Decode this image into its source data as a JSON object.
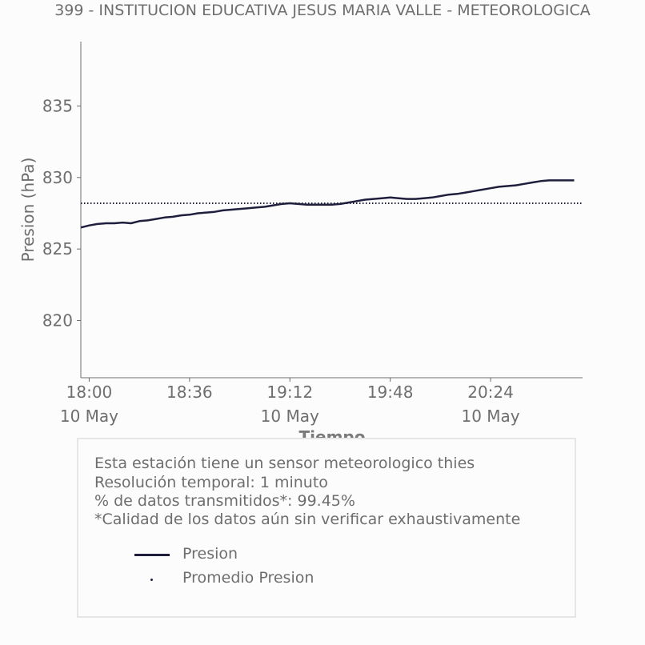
{
  "title": "399 - INSTITUCION EDUCATIVA JESUS MARIA VALLE - METEOROLOGICA",
  "chart_data": {
    "type": "line",
    "ylabel": "Presion (hPa)",
    "xlabel": "Tiempo",
    "ylim": [
      816,
      839.5
    ],
    "xlim": [
      "2024-05-10 17:57",
      "2024-05-10 20:57"
    ],
    "yticks": [
      820,
      825,
      830,
      835
    ],
    "xticks": [
      {
        "time": "18:00",
        "date": "10 May"
      },
      {
        "time": "18:36",
        "date": ""
      },
      {
        "time": "19:12",
        "date": "10 May"
      },
      {
        "time": "19:48",
        "date": ""
      },
      {
        "time": "20:24",
        "date": "10 May"
      }
    ],
    "grid": false,
    "series": [
      {
        "name": "Presion",
        "style": "solid",
        "color": "#1f1f3d",
        "points": [
          [
            "17:57",
            826.5
          ],
          [
            "18:00",
            826.65
          ],
          [
            "18:03",
            826.75
          ],
          [
            "18:06",
            826.8
          ],
          [
            "18:09",
            826.8
          ],
          [
            "18:12",
            826.85
          ],
          [
            "18:15",
            826.8
          ],
          [
            "18:18",
            826.95
          ],
          [
            "18:21",
            827.0
          ],
          [
            "18:24",
            827.1
          ],
          [
            "18:27",
            827.2
          ],
          [
            "18:30",
            827.25
          ],
          [
            "18:33",
            827.35
          ],
          [
            "18:36",
            827.4
          ],
          [
            "18:39",
            827.5
          ],
          [
            "18:42",
            827.55
          ],
          [
            "18:45",
            827.6
          ],
          [
            "18:48",
            827.7
          ],
          [
            "18:51",
            827.75
          ],
          [
            "18:54",
            827.8
          ],
          [
            "18:57",
            827.85
          ],
          [
            "19:00",
            827.9
          ],
          [
            "19:03",
            827.95
          ],
          [
            "19:06",
            828.05
          ],
          [
            "19:09",
            828.15
          ],
          [
            "19:12",
            828.2
          ],
          [
            "19:15",
            828.15
          ],
          [
            "19:18",
            828.1
          ],
          [
            "19:21",
            828.1
          ],
          [
            "19:24",
            828.1
          ],
          [
            "19:27",
            828.1
          ],
          [
            "19:30",
            828.15
          ],
          [
            "19:33",
            828.25
          ],
          [
            "19:36",
            828.35
          ],
          [
            "19:39",
            828.45
          ],
          [
            "19:42",
            828.5
          ],
          [
            "19:45",
            828.55
          ],
          [
            "19:48",
            828.6
          ],
          [
            "19:51",
            828.55
          ],
          [
            "19:54",
            828.5
          ],
          [
            "19:57",
            828.5
          ],
          [
            "20:00",
            828.55
          ],
          [
            "20:03",
            828.6
          ],
          [
            "20:06",
            828.7
          ],
          [
            "20:09",
            828.8
          ],
          [
            "20:12",
            828.85
          ],
          [
            "20:15",
            828.95
          ],
          [
            "20:18",
            829.05
          ],
          [
            "20:21",
            829.15
          ],
          [
            "20:24",
            829.25
          ],
          [
            "20:27",
            829.35
          ],
          [
            "20:30",
            829.4
          ],
          [
            "20:33",
            829.45
          ],
          [
            "20:36",
            829.55
          ],
          [
            "20:39",
            829.65
          ],
          [
            "20:42",
            829.75
          ],
          [
            "20:45",
            829.8
          ],
          [
            "20:48",
            829.8
          ],
          [
            "20:51",
            829.8
          ],
          [
            "20:54",
            829.8
          ]
        ]
      },
      {
        "name": "Promedio Presion",
        "style": "dotted",
        "color": "#1f1f3d",
        "value": 828.2,
        "range": [
          "17:57",
          "20:57"
        ]
      }
    ]
  },
  "info": {
    "lines": [
      "Esta estación tiene un sensor meteorologico thies",
      "Resolución temporal: 1 minuto",
      "% de datos transmitidos*: 99.45%",
      "*Calidad de los datos aún sin verificar exhaustivamente"
    ],
    "legend": [
      {
        "label": "Presion",
        "marker": "line"
      },
      {
        "label": "Promedio Presion",
        "marker": "dot"
      }
    ]
  }
}
